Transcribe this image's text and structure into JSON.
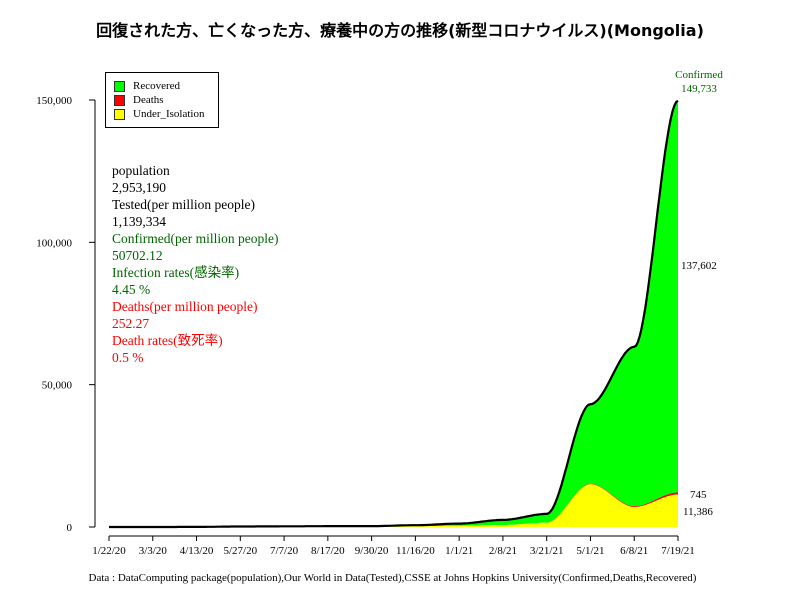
{
  "chart_data": {
    "type": "area",
    "title": "回復された方、亡くなった方、療養中の方の推移(新型コロナウイルス)(Mongolia)",
    "xlabel": "",
    "ylabel": "",
    "ylim": [
      0,
      150000
    ],
    "y_ticks": [
      0,
      50000,
      100000,
      150000
    ],
    "y_tick_labels": [
      "0",
      "50,000",
      "100,000",
      "150,000"
    ],
    "x_tick_labels": [
      "1/22/20",
      "3/3/20",
      "4/13/20",
      "5/27/20",
      "7/7/20",
      "8/17/20",
      "9/30/20",
      "11/16/20",
      "1/1/21",
      "2/8/21",
      "3/21/21",
      "5/1/21",
      "6/8/21",
      "7/19/21"
    ],
    "series": [
      {
        "name": "Recovered",
        "color": "#00ff00",
        "x": [
          "1/22/20",
          "3/3/20",
          "4/13/20",
          "5/27/20",
          "7/7/20",
          "8/17/20",
          "9/30/20",
          "11/16/20",
          "1/1/21",
          "2/8/21",
          "3/21/21",
          "5/1/21",
          "6/8/21",
          "7/19/21"
        ],
        "values": [
          0,
          0,
          20,
          150,
          220,
          290,
          300,
          330,
          800,
          1800,
          3100,
          28000,
          56000,
          137602
        ]
      },
      {
        "name": "Deaths",
        "color": "#ff0000",
        "x": [
          "1/22/20",
          "3/3/20",
          "4/13/20",
          "5/27/20",
          "7/7/20",
          "8/17/20",
          "9/30/20",
          "11/16/20",
          "1/1/21",
          "2/8/21",
          "3/21/21",
          "5/1/21",
          "6/8/21",
          "7/19/21"
        ],
        "values": [
          0,
          0,
          0,
          0,
          0,
          0,
          0,
          0,
          0,
          2,
          5,
          150,
          300,
          745
        ]
      },
      {
        "name": "Under_Isolation",
        "color": "#ffff00",
        "x": [
          "1/22/20",
          "3/3/20",
          "4/13/20",
          "5/27/20",
          "7/7/20",
          "8/17/20",
          "9/30/20",
          "11/16/20",
          "1/1/21",
          "2/8/21",
          "3/21/21",
          "5/1/21",
          "6/8/21",
          "7/19/21"
        ],
        "values": [
          0,
          1,
          10,
          30,
          10,
          10,
          10,
          300,
          400,
          700,
          1500,
          15000,
          7000,
          11386
        ]
      }
    ],
    "confirmed_curve": {
      "name": "Confirmed",
      "x": [
        "1/22/20",
        "3/3/20",
        "4/13/20",
        "5/27/20",
        "7/7/20",
        "8/17/20",
        "9/30/20",
        "11/16/20",
        "1/1/21",
        "2/8/21",
        "3/21/21",
        "5/1/21",
        "6/8/21",
        "7/19/21"
      ],
      "values": [
        0,
        1,
        30,
        180,
        230,
        300,
        310,
        630,
        1200,
        2500,
        4600,
        43150,
        63300,
        149733
      ]
    },
    "annotations": {
      "confirmed_label": "Confirmed",
      "confirmed_value": "149,733",
      "recovered_value": "137,602",
      "deaths_value": "745",
      "isolation_value": "11,386"
    },
    "legend": {
      "placement": "top-left",
      "entries": [
        {
          "label": "Recovered",
          "color": "#00ff00"
        },
        {
          "label": "Deaths",
          "color": "#ff0000"
        },
        {
          "label": "Under_Isolation",
          "color": "#ffff00"
        }
      ]
    }
  },
  "stats": {
    "population_label": "population",
    "population_value": "2,953,190",
    "tested_label": "Tested(per million people)",
    "tested_value": "1,139,334",
    "confirmed_label": "Confirmed(per million people)",
    "confirmed_value": "50702.12",
    "infection_label": "Infection rates(感染率)",
    "infection_value": "4.45 %",
    "deaths_label": "Deaths(per million people)",
    "deaths_value": "252.27",
    "death_rate_label": "Death rates(致死率)",
    "death_rate_value": "0.5 %"
  },
  "colors": {
    "black": "#000000",
    "green_text": "#006400",
    "red_text": "#ff0000"
  },
  "footer": "Data : DataComputing package(population),Our World in Data(Tested),CSSE at Johns Hopkins University(Confirmed,Deaths,Recovered)"
}
